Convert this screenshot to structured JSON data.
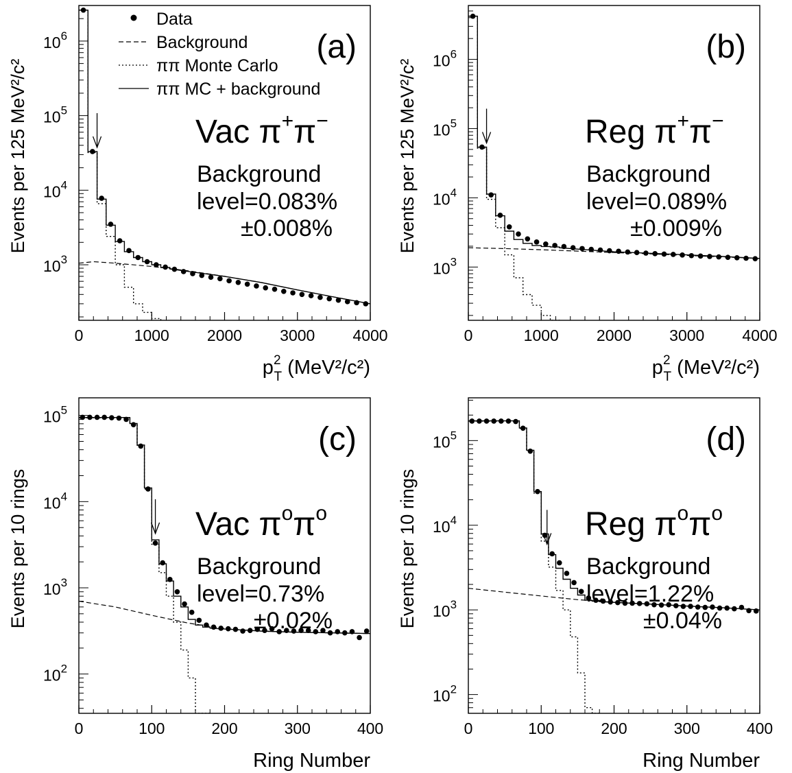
{
  "chart_data": [
    {
      "type": "line",
      "panel_label": "(a)",
      "title_main": "Vac π",
      "title_sup1": "+",
      "title_mid": "π",
      "title_sup2": "−",
      "bg_label": "Background",
      "bg_level": "level=0.083%",
      "bg_err": "±0.008%",
      "ylabel": "Events per 125 MeV²/c²",
      "xlabel_base": "p",
      "xlabel_sup": "2",
      "xlabel_sub": "T",
      "xlabel_rest": " (MeV²/c²)",
      "xlim": [
        0,
        4000
      ],
      "ylim": [
        180,
        3000000
      ],
      "yscale": "log",
      "xticks": [
        "0",
        "1000",
        "2000",
        "3000",
        "4000"
      ],
      "yticks": [
        {
          "value": 1000,
          "label": "10",
          "exp": "3"
        },
        {
          "value": 10000,
          "label": "10",
          "exp": "4"
        },
        {
          "value": 100000,
          "label": "10",
          "exp": "5"
        },
        {
          "value": 1000000,
          "label": "10",
          "exp": "6"
        }
      ],
      "arrow_x": 250,
      "legend": [
        {
          "name": "Data",
          "style": "marker"
        },
        {
          "name": "Background",
          "style": "dashed"
        },
        {
          "name": "ππ Monte Carlo",
          "style": "dotted"
        },
        {
          "name": "ππ MC + background",
          "style": "solid"
        }
      ],
      "bin_edges": [
        0,
        125,
        250,
        375,
        500,
        625,
        750,
        875,
        1000,
        1125,
        1250
      ],
      "series": [
        {
          "name": "Data",
          "x": [
            62,
            187,
            312,
            437,
            562,
            687,
            812,
            937,
            1062,
            1187,
            1312,
            1437,
            1562,
            1687,
            1812,
            1937,
            2062,
            2187,
            2312,
            2437,
            2562,
            2687,
            2812,
            2937,
            3062,
            3187,
            3312,
            3437,
            3562,
            3687,
            3812,
            3937
          ],
          "values": [
            2600000,
            33000,
            7800,
            3500,
            2100,
            1550,
            1250,
            1100,
            1000,
            930,
            870,
            810,
            760,
            720,
            680,
            650,
            610,
            580,
            550,
            520,
            490,
            470,
            440,
            420,
            400,
            385,
            365,
            350,
            335,
            320,
            310,
            300
          ]
        },
        {
          "name": "Background",
          "x": [
            0,
            200,
            500,
            1000,
            1500,
            2000,
            2500,
            3000,
            3500,
            4000
          ],
          "values": [
            1050,
            1100,
            1050,
            950,
            830,
            700,
            580,
            460,
            370,
            300
          ]
        },
        {
          "name": "ππ Monte Carlo",
          "bin_values": [
            2600000,
            32000,
            6600,
            2400,
            1000,
            500,
            300,
            230,
            190,
            170
          ]
        },
        {
          "name": "ππ MC + background",
          "bin_values": [
            2600000,
            33000,
            7600,
            3400,
            2050,
            1500,
            1250,
            1100,
            1000,
            920
          ],
          "tail_x": [
            1250,
            2000,
            2500,
            3000,
            3500,
            4000
          ],
          "tail_values": [
            880,
            700,
            580,
            460,
            370,
            300
          ]
        }
      ]
    },
    {
      "type": "line",
      "panel_label": "(b)",
      "title_main": "Reg π",
      "title_sup1": "+",
      "title_mid": "π",
      "title_sup2": "−",
      "bg_label": "Background",
      "bg_level": "level=0.089%",
      "bg_err": "±0.009%",
      "ylabel": "Events per 125 MeV²/c²",
      "xlabel_base": "p",
      "xlabel_sup": "2",
      "xlabel_sub": "T",
      "xlabel_rest": " (MeV²/c²)",
      "xlim": [
        0,
        4000
      ],
      "ylim": [
        170,
        6000000
      ],
      "yscale": "log",
      "xticks": [
        "0",
        "1000",
        "2000",
        "3000",
        "4000"
      ],
      "yticks": [
        {
          "value": 1000,
          "label": "10",
          "exp": "3"
        },
        {
          "value": 10000,
          "label": "10",
          "exp": "4"
        },
        {
          "value": 100000,
          "label": "10",
          "exp": "5"
        },
        {
          "value": 1000000,
          "label": "10",
          "exp": "6"
        }
      ],
      "arrow_x": 250,
      "legend": [],
      "bin_edges": [
        0,
        125,
        250,
        375,
        500,
        625,
        750,
        875,
        1000,
        1125,
        1250
      ],
      "series": [
        {
          "name": "Data",
          "x": [
            62,
            187,
            312,
            437,
            562,
            687,
            812,
            937,
            1062,
            1187,
            1312,
            1437,
            1562,
            1687,
            1812,
            1937,
            2062,
            2187,
            2312,
            2437,
            2562,
            2687,
            2812,
            2937,
            3062,
            3187,
            3312,
            3437,
            3562,
            3687,
            3812,
            3937
          ],
          "values": [
            4200000,
            54000,
            11000,
            5600,
            3800,
            3000,
            2550,
            2300,
            2150,
            2050,
            1980,
            1900,
            1850,
            1800,
            1760,
            1720,
            1690,
            1650,
            1620,
            1590,
            1560,
            1540,
            1520,
            1490,
            1460,
            1440,
            1420,
            1400,
            1380,
            1360,
            1340,
            1320
          ]
        },
        {
          "name": "Background",
          "x": [
            0,
            500,
            1000,
            1500,
            2000,
            2500,
            3000,
            3500,
            4000
          ],
          "values": [
            1900,
            1850,
            1780,
            1700,
            1620,
            1550,
            1470,
            1400,
            1330
          ]
        },
        {
          "name": "ππ Monte Carlo",
          "bin_values": [
            4200000,
            52000,
            9500,
            3700,
            1500,
            700,
            400,
            280,
            200,
            170
          ]
        },
        {
          "name": "ππ MC + background",
          "bin_values": [
            4200000,
            54000,
            11300,
            5500,
            3300,
            2500,
            2200,
            2050,
            1980,
            1950
          ],
          "tail_x": [
            1250,
            2000,
            2500,
            3000,
            3500,
            4000
          ],
          "tail_values": [
            1900,
            1660,
            1580,
            1500,
            1420,
            1330
          ]
        }
      ]
    },
    {
      "type": "line",
      "panel_label": "(c)",
      "title_main": "Vac π",
      "title_sup1": "o",
      "title_mid": "π",
      "title_sup2": "o",
      "bg_label": "Background",
      "bg_level": "level=0.73%",
      "bg_err": "±0.02%",
      "ylabel": "Events per 10 rings",
      "xlabel_base": "Ring Number",
      "xlabel_sup": "",
      "xlabel_sub": "",
      "xlabel_rest": "",
      "xlim": [
        0,
        400
      ],
      "ylim": [
        35,
        160000
      ],
      "yscale": "log",
      "xticks": [
        "0",
        "100",
        "200",
        "300",
        "400"
      ],
      "yticks": [
        {
          "value": 100,
          "label": "10",
          "exp": "2"
        },
        {
          "value": 1000,
          "label": "10",
          "exp": "3"
        },
        {
          "value": 10000,
          "label": "10",
          "exp": "4"
        },
        {
          "value": 100000,
          "label": "10",
          "exp": "5"
        }
      ],
      "arrow_x": 105,
      "legend": [],
      "bin_edges": [
        0,
        70,
        80,
        90,
        100,
        110,
        120,
        130,
        140,
        150,
        160,
        170,
        180
      ],
      "series": [
        {
          "name": "Data",
          "x": [
            5,
            15,
            25,
            35,
            45,
            55,
            65,
            75,
            85,
            95,
            105,
            115,
            125,
            135,
            145,
            155,
            165,
            175,
            185,
            195,
            205,
            215,
            225,
            235,
            245,
            255,
            265,
            275,
            285,
            295,
            305,
            315,
            325,
            335,
            345,
            355,
            365,
            375,
            385,
            395
          ],
          "values": [
            95000,
            95000,
            95000,
            95000,
            94000,
            93000,
            90000,
            78000,
            44000,
            14000,
            3300,
            1950,
            1250,
            900,
            650,
            520,
            420,
            370,
            350,
            340,
            335,
            330,
            315,
            320,
            330,
            320,
            335,
            310,
            320,
            315,
            320,
            320,
            310,
            320,
            300,
            310,
            300,
            310,
            265,
            315
          ]
        },
        {
          "name": "Background",
          "x": [
            0,
            50,
            100,
            150,
            200,
            250,
            300,
            350,
            400
          ],
          "values": [
            700,
            600,
            480,
            390,
            335,
            315,
            305,
            300,
            295
          ]
        },
        {
          "name": "ππ Monte Carlo",
          "bin_values": [
            94000,
            80000,
            45000,
            14000,
            3200,
            1500,
            800,
            400,
            190,
            90,
            35,
            35
          ]
        },
        {
          "name": "ππ MC + background",
          "bin_values": [
            94500,
            80500,
            45400,
            14400,
            3600,
            1900,
            1200,
            800,
            600,
            430,
            370,
            350
          ],
          "tail_x": [
            180,
            250,
            300,
            350,
            400
          ],
          "tail_values": [
            340,
            315,
            305,
            300,
            295
          ]
        }
      ]
    },
    {
      "type": "line",
      "panel_label": "(d)",
      "title_main": "Reg π",
      "title_sup1": "o",
      "title_mid": "π",
      "title_sup2": "o",
      "bg_label": "Background",
      "bg_level": "level=1.22%",
      "bg_err": "±0.04%",
      "ylabel": "Events per 10 rings",
      "xlabel_base": "Ring Number",
      "xlabel_sup": "",
      "xlabel_sub": "",
      "xlabel_rest": "",
      "xlim": [
        0,
        400
      ],
      "ylim": [
        60,
        320000
      ],
      "yscale": "log",
      "xticks": [
        "0",
        "100",
        "200",
        "300",
        "400"
      ],
      "yticks": [
        {
          "value": 100,
          "label": "10",
          "exp": "2"
        },
        {
          "value": 1000,
          "label": "10",
          "exp": "3"
        },
        {
          "value": 10000,
          "label": "10",
          "exp": "4"
        },
        {
          "value": 100000,
          "label": "10",
          "exp": "5"
        }
      ],
      "arrow_x": 108,
      "legend": [],
      "bin_edges": [
        0,
        70,
        80,
        90,
        100,
        110,
        120,
        130,
        140,
        150,
        160,
        170,
        180
      ],
      "series": [
        {
          "name": "Data",
          "x": [
            5,
            15,
            25,
            35,
            45,
            55,
            65,
            75,
            85,
            95,
            105,
            115,
            125,
            135,
            145,
            155,
            165,
            175,
            185,
            195,
            205,
            215,
            225,
            235,
            245,
            255,
            265,
            275,
            285,
            295,
            305,
            315,
            325,
            335,
            345,
            355,
            365,
            375,
            385,
            395
          ],
          "values": [
            170000,
            170000,
            170000,
            170000,
            170000,
            170000,
            168000,
            140000,
            75000,
            25000,
            7600,
            4600,
            3600,
            2700,
            2100,
            1650,
            1380,
            1300,
            1270,
            1240,
            1220,
            1200,
            1200,
            1190,
            1180,
            1150,
            1140,
            1150,
            1120,
            1100,
            1100,
            1080,
            1070,
            1080,
            1050,
            1050,
            1030,
            1070,
            980,
            970
          ]
        },
        {
          "name": "Background",
          "x": [
            0,
            50,
            100,
            150,
            200,
            250,
            300,
            350,
            400
          ],
          "values": [
            1800,
            1620,
            1460,
            1320,
            1230,
            1170,
            1110,
            1060,
            1000
          ]
        },
        {
          "name": "ππ Monte Carlo",
          "bin_values": [
            170000,
            140000,
            76000,
            24000,
            6500,
            3200,
            1700,
            1000,
            480,
            180,
            70,
            60
          ]
        },
        {
          "name": "ππ MC + background",
          "bin_values": [
            171000,
            141000,
            77000,
            25000,
            7900,
            4500,
            3100,
            2300,
            1800,
            1500,
            1300,
            1270
          ],
          "tail_x": [
            180,
            250,
            300,
            350,
            400
          ],
          "tail_values": [
            1250,
            1170,
            1110,
            1060,
            1000
          ]
        }
      ]
    }
  ]
}
